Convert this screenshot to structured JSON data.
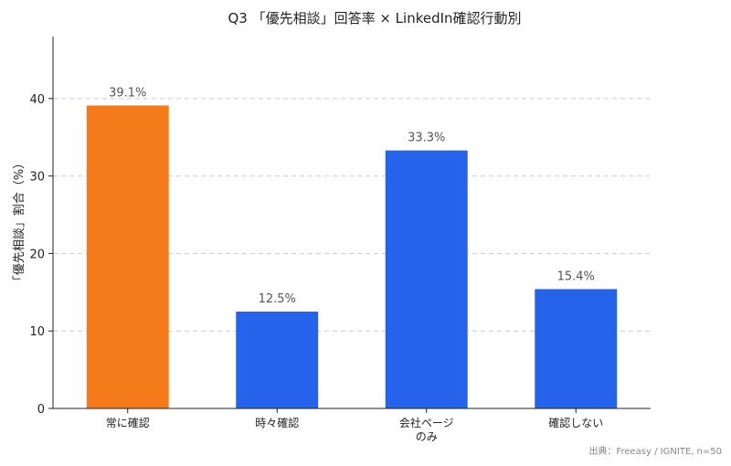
{
  "chart_data": {
    "type": "bar",
    "title": "Q3 「優先相談」回答率 × LinkedIn確認行動別",
    "xlabel": "",
    "ylabel": "「優先相談」割合（%）",
    "ylim": [
      0,
      48
    ],
    "yticks": [
      0,
      10,
      20,
      30,
      40
    ],
    "grid": "y-dashed",
    "categories": [
      "常に確認",
      "時々確認",
      "会社ページ\nのみ",
      "確認しない"
    ],
    "values": [
      39.1,
      12.5,
      33.3,
      15.4
    ],
    "value_labels": [
      "39.1%",
      "12.5%",
      "33.3%",
      "15.4%"
    ],
    "colors": [
      "#F57A1A",
      "#2563EB",
      "#2563EB",
      "#2563EB"
    ]
  },
  "source": "出典：Freeasy / IGNITE, n=50"
}
